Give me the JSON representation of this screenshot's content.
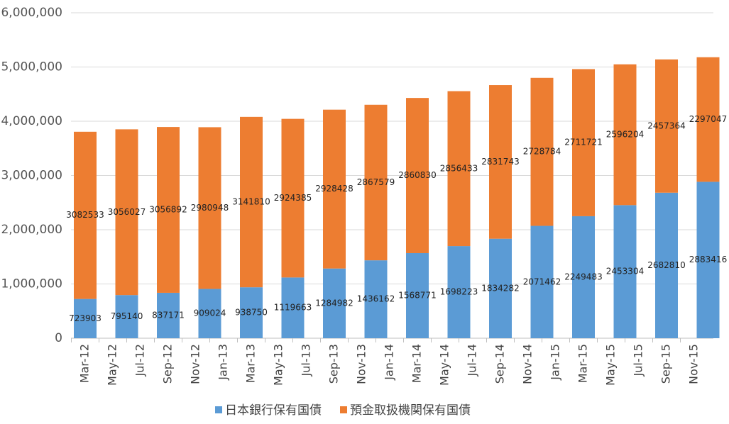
{
  "chart_data": {
    "type": "stacked_bar",
    "x": [
      "2012-03",
      "2012-06",
      "2012-09",
      "2012-12",
      "2013-03",
      "2013-06",
      "2013-09",
      "2013-12",
      "2014-03",
      "2014-06",
      "2014-09",
      "2014-12",
      "2015-03",
      "2015-06",
      "2015-09",
      "2015-12"
    ],
    "series": [
      {
        "name": "日本銀行保有国債",
        "color": "#5b9bd5",
        "values": [
          723903,
          795140,
          837171,
          909024,
          938750,
          1119663,
          1284982,
          1436162,
          1568771,
          1698223,
          1834282,
          2071462,
          2249483,
          2453304,
          2682810,
          2883416
        ]
      },
      {
        "name": "預金取扱機関保有国債",
        "color": "#ed7d31",
        "values": [
          3082533,
          3056027,
          3056892,
          2980948,
          3141810,
          2924385,
          2928428,
          2867579,
          2860830,
          2856433,
          2831743,
          2728784,
          2711721,
          2596204,
          2457364,
          2297047
        ]
      }
    ],
    "ylim": [
      0,
      6000000
    ],
    "yticks": [
      0,
      {
        "value": 1000000,
        "label": "1,000,000"
      },
      {
        "value": 2000000,
        "label": "2,000,000"
      },
      {
        "value": 3000000,
        "label": "3,000,000"
      },
      {
        "value": 4000000,
        "label": "4,000,000"
      },
      {
        "value": 5000000,
        "label": "5,000,000"
      },
      {
        "value": 6000000,
        "label": "6,000,000"
      }
    ],
    "xticks": [
      {
        "value": "2012-03",
        "label": "Mar-12"
      },
      {
        "value": "2012-05",
        "label": "May-12"
      },
      {
        "value": "2012-07",
        "label": "Jul-12"
      },
      {
        "value": "2012-09",
        "label": "Sep-12"
      },
      {
        "value": "2012-11",
        "label": "Nov-12"
      },
      {
        "value": "2013-01",
        "label": "Jan-13"
      },
      {
        "value": "2013-03",
        "label": "Mar-13"
      },
      {
        "value": "2013-05",
        "label": "May-13"
      },
      {
        "value": "2013-07",
        "label": "Jul-13"
      },
      {
        "value": "2013-09",
        "label": "Sep-13"
      },
      {
        "value": "2013-11",
        "label": "Nov-13"
      },
      {
        "value": "2014-01",
        "label": "Jan-14"
      },
      {
        "value": "2014-03",
        "label": "Mar-14"
      },
      {
        "value": "2014-05",
        "label": "May-14"
      },
      {
        "value": "2014-07",
        "label": "Jul-14"
      },
      {
        "value": "2014-09",
        "label": "Sep-14"
      },
      {
        "value": "2014-11",
        "label": "Nov-14"
      },
      {
        "value": "2015-01",
        "label": "Jan-15"
      },
      {
        "value": "2015-03",
        "label": "Mar-15"
      },
      {
        "value": "2015-05",
        "label": "May-15"
      },
      {
        "value": "2015-07",
        "label": "Jul-15"
      },
      {
        "value": "2015-09",
        "label": "Sep-15"
      },
      {
        "value": "2015-11",
        "label": "Nov-15"
      }
    ],
    "grid": true,
    "legend": "bottom"
  }
}
